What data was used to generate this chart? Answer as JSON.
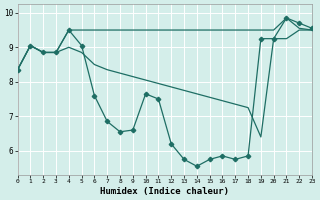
{
  "xlabel": "Humidex (Indice chaleur)",
  "xlim": [
    0,
    23
  ],
  "ylim": [
    5.3,
    10.25
  ],
  "yticks": [
    6,
    7,
    8,
    9,
    10
  ],
  "xticks": [
    0,
    1,
    2,
    3,
    4,
    5,
    6,
    7,
    8,
    9,
    10,
    11,
    12,
    13,
    14,
    15,
    16,
    17,
    18,
    19,
    20,
    21,
    22,
    23
  ],
  "bg_color": "#d4eeea",
  "grid_color": "#b8ddd8",
  "line_color": "#1e6e64",
  "line_top_x": [
    0,
    1,
    2,
    3,
    4,
    5,
    6,
    7,
    8,
    9,
    10,
    11,
    12,
    13,
    14,
    15,
    16,
    17,
    18,
    19,
    20,
    21,
    22,
    23
  ],
  "line_top_y": [
    8.35,
    9.05,
    8.85,
    8.85,
    9.5,
    9.5,
    9.5,
    9.5,
    9.5,
    9.5,
    9.5,
    9.5,
    9.5,
    9.5,
    9.5,
    9.5,
    9.5,
    9.5,
    9.5,
    9.5,
    9.5,
    9.85,
    9.55,
    9.5
  ],
  "line_mid_x": [
    0,
    1,
    2,
    3,
    4,
    5,
    6,
    7,
    8,
    9,
    10,
    11,
    12,
    13,
    14,
    15,
    16,
    17,
    18,
    19,
    20,
    21,
    22,
    23
  ],
  "line_mid_y": [
    8.35,
    9.05,
    8.85,
    8.85,
    9.0,
    8.85,
    8.5,
    8.35,
    8.25,
    8.15,
    8.05,
    7.95,
    7.85,
    7.75,
    7.65,
    7.55,
    7.45,
    7.35,
    7.25,
    6.4,
    9.25,
    9.25,
    9.5,
    9.5
  ],
  "line_bot_x": [
    0,
    1,
    2,
    3,
    4,
    5,
    6,
    7,
    8,
    9,
    10,
    11,
    12,
    13,
    14,
    15,
    16,
    17,
    18,
    19,
    20,
    21,
    22,
    23
  ],
  "line_bot_y": [
    8.35,
    9.05,
    8.85,
    8.85,
    9.5,
    9.05,
    7.6,
    6.85,
    6.55,
    6.6,
    7.65,
    7.5,
    6.2,
    5.75,
    5.55,
    5.75,
    5.85,
    5.75,
    5.85,
    9.25,
    9.25,
    9.85,
    9.7,
    9.55
  ]
}
